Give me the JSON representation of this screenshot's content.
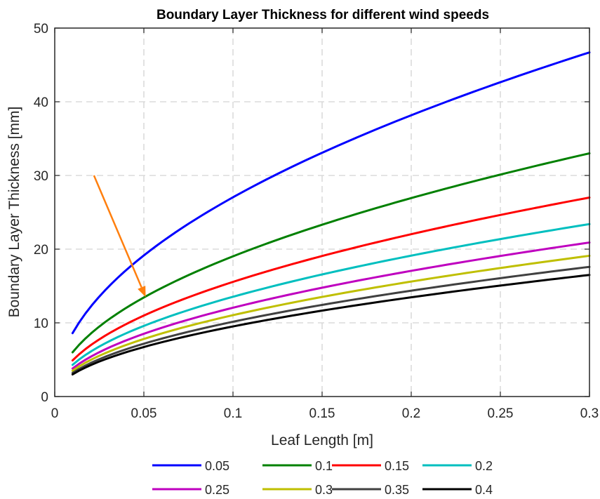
{
  "chart_data": {
    "type": "line",
    "title": "Boundary Layer Thickness for different wind speeds",
    "xlabel": "Leaf Length [m]",
    "ylabel": "Boundary Layer Thickness [mm]",
    "xlim": [
      0,
      0.3
    ],
    "ylim": [
      0,
      50
    ],
    "x_ticks": [
      "0",
      "0.05",
      "0.1",
      "0.15",
      "0.2",
      "0.25",
      "0.3"
    ],
    "y_ticks": [
      "0",
      "10",
      "20",
      "30",
      "40",
      "50"
    ],
    "grid": true,
    "legend_position": "bottom, outside",
    "series": [
      {
        "name": "0.05",
        "color": "#0000ff",
        "x_start": 0.01,
        "x_end": 0.3,
        "y_start": 8.6,
        "y_end": 46.7
      },
      {
        "name": "0.1",
        "color": "#008000",
        "x_start": 0.01,
        "x_end": 0.3,
        "y_start": 6.0,
        "y_end": 33.0
      },
      {
        "name": "0.15",
        "color": "#ff0000",
        "x_start": 0.01,
        "x_end": 0.3,
        "y_start": 4.9,
        "y_end": 27.0
      },
      {
        "name": "0.2",
        "color": "#00bfbf",
        "x_start": 0.01,
        "x_end": 0.3,
        "y_start": 4.3,
        "y_end": 23.4
      },
      {
        "name": "0.25",
        "color": "#bf00bf",
        "x_start": 0.01,
        "x_end": 0.3,
        "y_start": 3.8,
        "y_end": 20.9
      },
      {
        "name": "0.3",
        "color": "#bfbf00",
        "x_start": 0.01,
        "x_end": 0.3,
        "y_start": 3.5,
        "y_end": 19.1
      },
      {
        "name": "0.35",
        "color": "#404040",
        "x_start": 0.01,
        "x_end": 0.3,
        "y_start": 3.2,
        "y_end": 17.6
      },
      {
        "name": "0.4",
        "color": "#000000",
        "x_start": 0.01,
        "x_end": 0.3,
        "y_start": 3.0,
        "y_end": 16.5
      }
    ],
    "annotations": [
      {
        "type": "arrow",
        "color": "#ff7f0e",
        "from": [
          0.022,
          30
        ],
        "to": [
          0.051,
          13.5
        ]
      }
    ]
  }
}
